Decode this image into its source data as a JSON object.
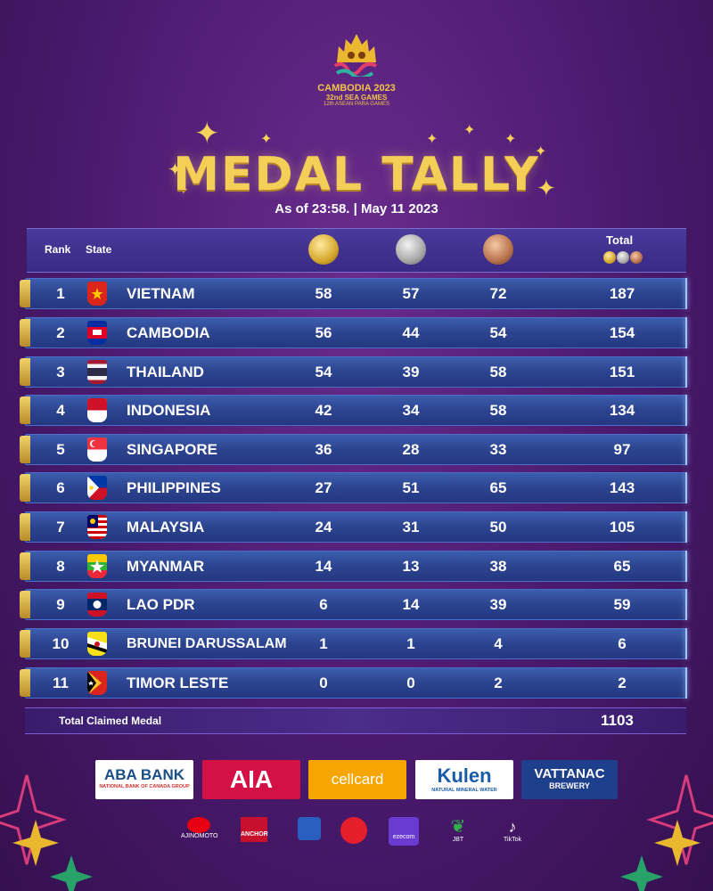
{
  "logo": {
    "line1": "CAMBODIA 2023",
    "line2": "32nd SEA GAMES",
    "line3": "12th ASEAN PARA GAMES"
  },
  "title": "MEDAL TALLY",
  "as_of": "As of 23:58. | May 11 2023",
  "header": {
    "rank": "Rank",
    "state": "State",
    "total": "Total",
    "gold_icon": "gold-medal-icon",
    "silver_icon": "silver-medal-icon",
    "bronze_icon": "bronze-medal-icon"
  },
  "rows": [
    {
      "rank": "1",
      "name": "VIETNAM",
      "gold": "58",
      "silver": "57",
      "bronze": "72",
      "total": "187",
      "flag": "vietnam-flag-icon"
    },
    {
      "rank": "2",
      "name": "CAMBODIA",
      "gold": "56",
      "silver": "44",
      "bronze": "54",
      "total": "154",
      "flag": "cambodia-flag-icon"
    },
    {
      "rank": "3",
      "name": "THAILAND",
      "gold": "54",
      "silver": "39",
      "bronze": "58",
      "total": "151",
      "flag": "thailand-flag-icon"
    },
    {
      "rank": "4",
      "name": "INDONESIA",
      "gold": "42",
      "silver": "34",
      "bronze": "58",
      "total": "134",
      "flag": "indonesia-flag-icon"
    },
    {
      "rank": "5",
      "name": "SINGAPORE",
      "gold": "36",
      "silver": "28",
      "bronze": "33",
      "total": "97",
      "flag": "singapore-flag-icon"
    },
    {
      "rank": "6",
      "name": "PHILIPPINES",
      "gold": "27",
      "silver": "51",
      "bronze": "65",
      "total": "143",
      "flag": "philippines-flag-icon"
    },
    {
      "rank": "7",
      "name": "MALAYSIA",
      "gold": "24",
      "silver": "31",
      "bronze": "50",
      "total": "105",
      "flag": "malaysia-flag-icon"
    },
    {
      "rank": "8",
      "name": "MYANMAR",
      "gold": "14",
      "silver": "13",
      "bronze": "38",
      "total": "65",
      "flag": "myanmar-flag-icon"
    },
    {
      "rank": "9",
      "name": "LAO PDR",
      "gold": "6",
      "silver": "14",
      "bronze": "39",
      "total": "59",
      "flag": "laos-flag-icon"
    },
    {
      "rank": "10",
      "name": "BRUNEI DARUSSALAM",
      "gold": "1",
      "silver": "1",
      "bronze": "4",
      "total": "6",
      "flag": "brunei-flag-icon"
    },
    {
      "rank": "11",
      "name": "TIMOR LESTE",
      "gold": "0",
      "silver": "0",
      "bronze": "2",
      "total": "2",
      "flag": "timor-leste-flag-icon"
    }
  ],
  "total_claimed": {
    "label": "Total Claimed Medal",
    "value": "1103"
  },
  "sponsors": {
    "aba_line1": "ABA BANK",
    "aba_line2": "NATIONAL BANK OF CANADA GROUP",
    "aia": "AIA",
    "cellcard": "cellcard",
    "kulen_main": "Kulen",
    "kulen_sub": "NATURAL MINERAL WATER",
    "vattanac_line1": "VATTANAC",
    "vattanac_line2": "BREWERY",
    "small": [
      "AJINOMOTO",
      "ANCHOR",
      "",
      "",
      "ezecom",
      "JBT",
      "TikTok"
    ]
  },
  "colors": {
    "background": "#4a1a6e",
    "title_gold": "#f4cf57",
    "row_blue": "#2c448f"
  }
}
